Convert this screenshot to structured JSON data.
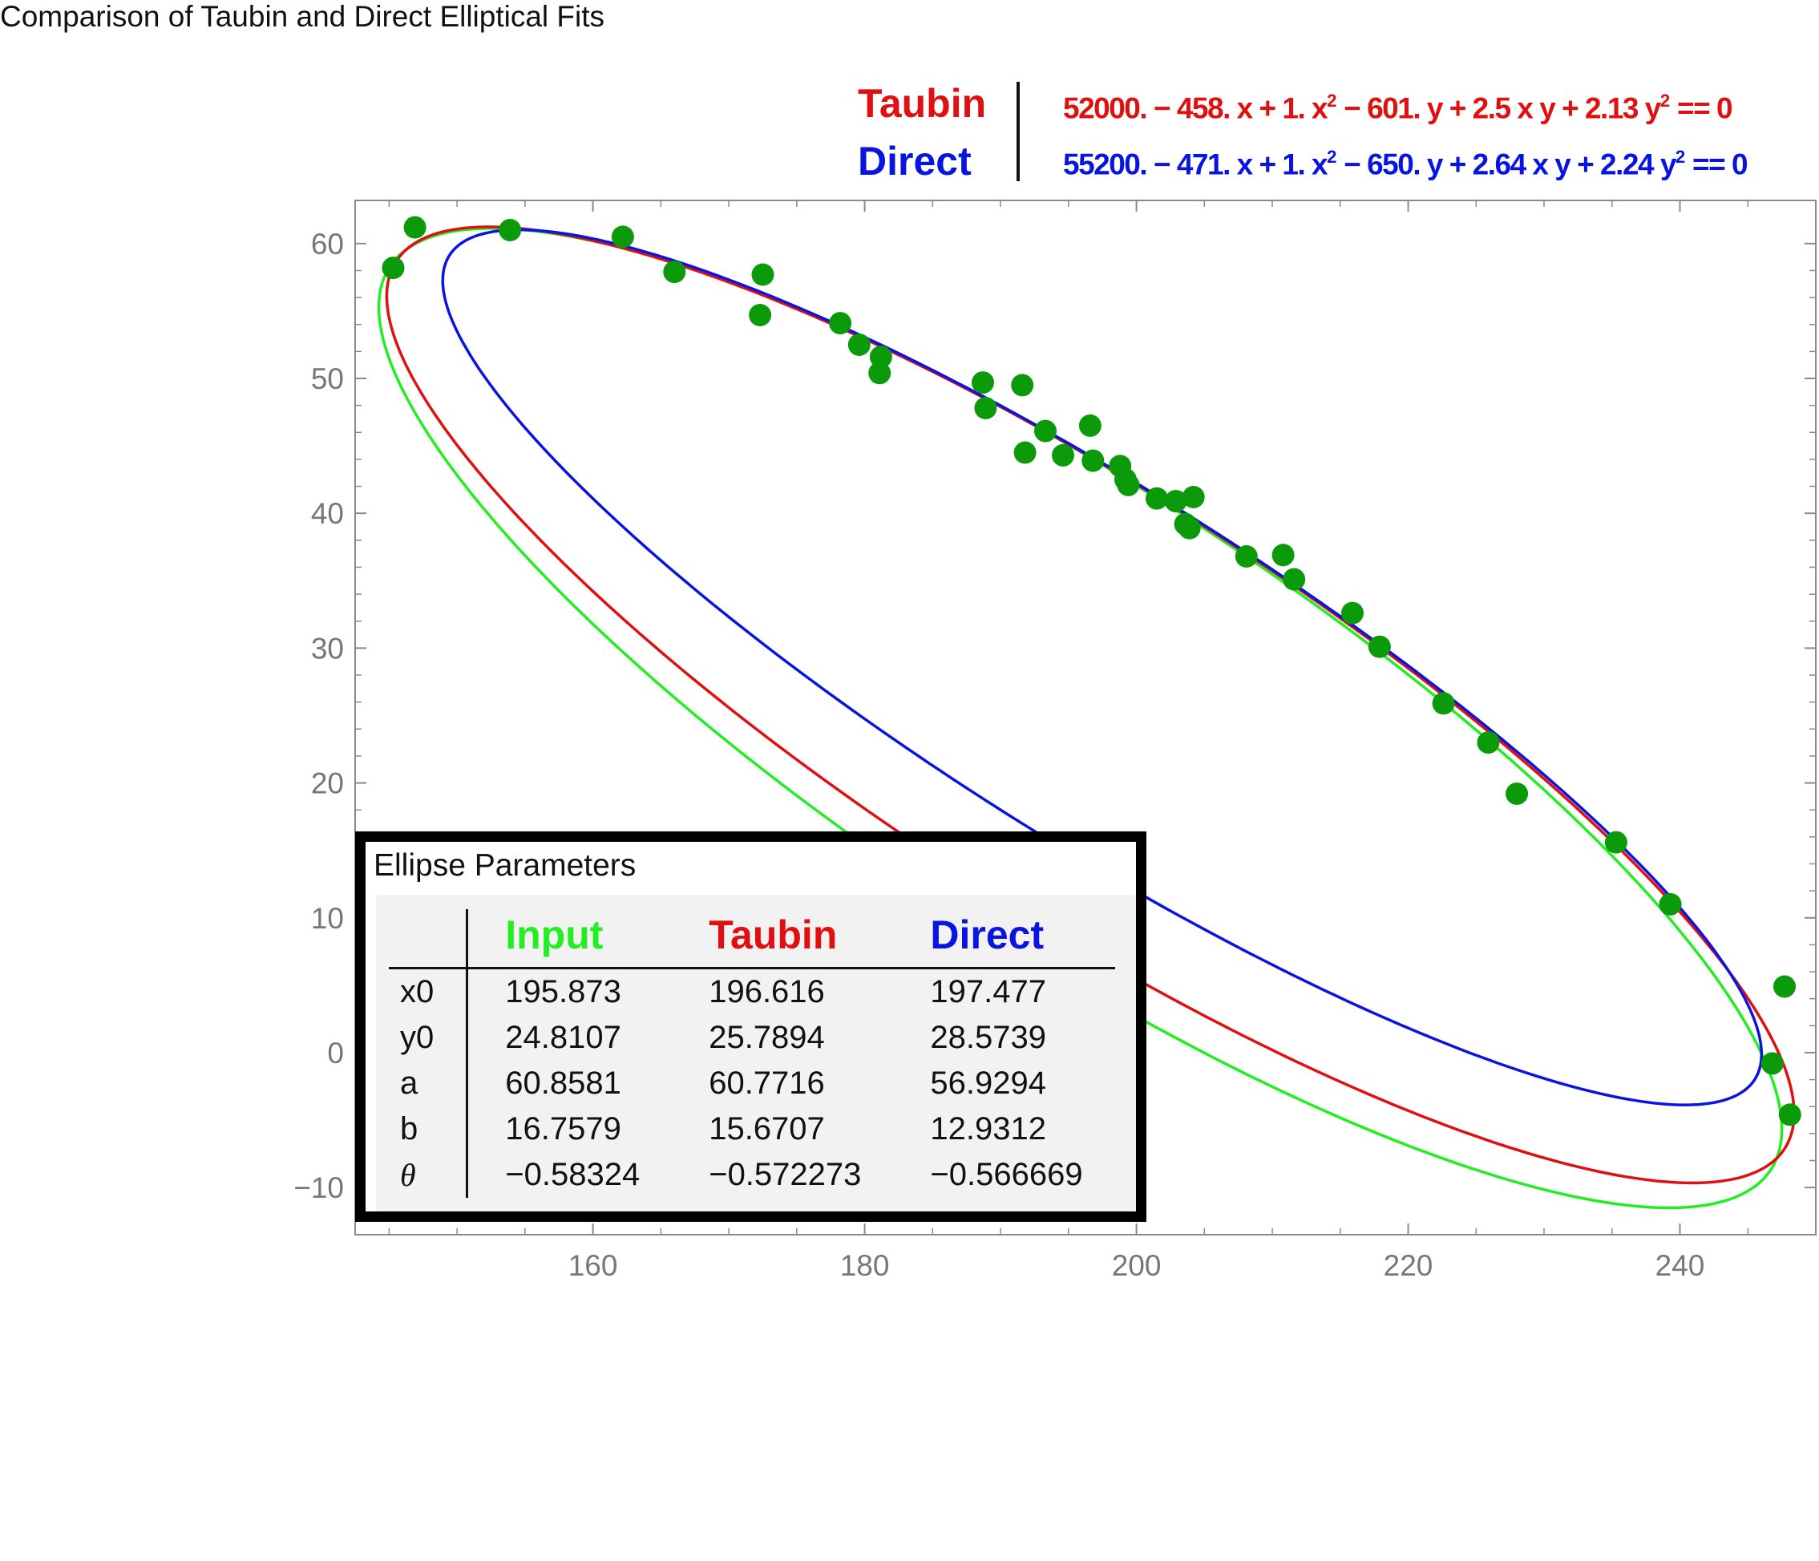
{
  "title": "Comparison of Taubin and Direct Elliptical Fits",
  "colors": {
    "input": "#22ee22",
    "taubin": "#e01010",
    "direct": "#0a14e0",
    "points": "#0a9a0a",
    "axis": "#8a8a8a"
  },
  "legend": {
    "taubin": {
      "name": "Taubin",
      "c0": "52000.",
      "cx": "− 458. x + 1. x",
      "cy": "− 601. y + 2.5 x y + 2.13 y",
      "tail": " == 0"
    },
    "direct": {
      "name": "Direct",
      "c0": "55200.",
      "cx": "− 471. x + 1. x",
      "cy": "− 650. y + 2.64 x y + 2.24 y",
      "tail": " == 0"
    },
    "sq": "2"
  },
  "parameters": {
    "title": "Ellipse Parameters",
    "columns": [
      "Input",
      "Taubin",
      "Direct"
    ],
    "rows": [
      {
        "label": "x0",
        "values": [
          "195.873",
          "196.616",
          "197.477"
        ]
      },
      {
        "label": "y0",
        "values": [
          "24.8107",
          "25.7894",
          "28.5739"
        ]
      },
      {
        "label": "a",
        "values": [
          "60.8581",
          "60.7716",
          "56.9294"
        ]
      },
      {
        "label": "b",
        "values": [
          "16.7579",
          "15.6707",
          "12.9312"
        ]
      },
      {
        "label": "θ",
        "values": [
          "−0.58324",
          "−0.572273",
          "−0.566669"
        ]
      }
    ]
  },
  "chart_data": {
    "type": "scatter",
    "title": "Comparison of Taubin and Direct Elliptical Fits",
    "xlim": [
      142.5,
      250
    ],
    "ylim": [
      -13.5,
      63.2
    ],
    "xticks": [
      160,
      180,
      200,
      220,
      240
    ],
    "yticks": [
      -10,
      0,
      10,
      20,
      30,
      40,
      50,
      60
    ],
    "xtick_labels": [
      "160",
      "180",
      "200",
      "220",
      "240"
    ],
    "ytick_labels": [
      "−10",
      "0",
      "10",
      "20",
      "30",
      "40",
      "50",
      "60"
    ],
    "points": [
      [
        145.3,
        58.2
      ],
      [
        146.9,
        61.2
      ],
      [
        153.9,
        61.0
      ],
      [
        162.2,
        60.5
      ],
      [
        166.0,
        57.9
      ],
      [
        172.5,
        57.7
      ],
      [
        172.3,
        54.7
      ],
      [
        178.2,
        54.1
      ],
      [
        179.6,
        52.5
      ],
      [
        181.2,
        51.6
      ],
      [
        181.1,
        50.4
      ],
      [
        188.7,
        49.7
      ],
      [
        188.9,
        47.8
      ],
      [
        191.6,
        49.5
      ],
      [
        191.8,
        44.5
      ],
      [
        193.3,
        46.1
      ],
      [
        194.6,
        44.3
      ],
      [
        196.6,
        46.5
      ],
      [
        196.8,
        43.9
      ],
      [
        198.8,
        43.5
      ],
      [
        199.2,
        42.5
      ],
      [
        199.4,
        42.1
      ],
      [
        201.5,
        41.1
      ],
      [
        202.9,
        40.9
      ],
      [
        203.6,
        39.2
      ],
      [
        203.9,
        38.9
      ],
      [
        204.2,
        41.2
      ],
      [
        208.1,
        36.8
      ],
      [
        210.8,
        36.9
      ],
      [
        211.6,
        35.1
      ],
      [
        215.9,
        32.6
      ],
      [
        217.9,
        30.1
      ],
      [
        222.6,
        25.9
      ],
      [
        225.9,
        23.0
      ],
      [
        228.0,
        19.2
      ],
      [
        235.3,
        15.6
      ],
      [
        239.3,
        11.0
      ],
      [
        246.8,
        -0.8
      ],
      [
        247.7,
        4.9
      ],
      [
        248.1,
        -4.6
      ]
    ],
    "series": [
      {
        "name": "Input",
        "x0": 195.873,
        "y0": 24.8107,
        "a": 60.8581,
        "b": 16.7579,
        "theta": -0.58324
      },
      {
        "name": "Taubin",
        "x0": 196.616,
        "y0": 25.7894,
        "a": 60.7716,
        "b": 15.6707,
        "theta": -0.572273
      },
      {
        "name": "Direct",
        "x0": 197.477,
        "y0": 28.5739,
        "a": 56.9294,
        "b": 12.9312,
        "theta": -0.566669
      }
    ],
    "legend_position": "top-right",
    "grid": false
  }
}
